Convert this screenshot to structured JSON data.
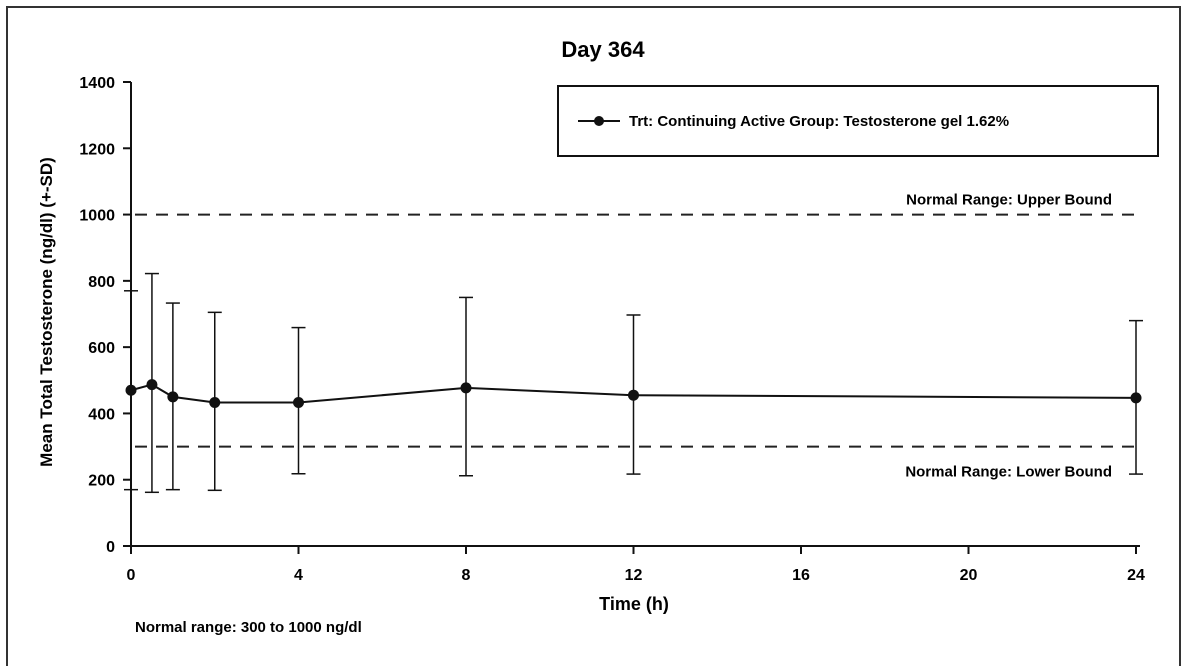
{
  "chart_data": {
    "type": "line",
    "title": "Day 364",
    "xlabel": "Time (h)",
    "ylabel": "Mean Total Testosterone (ng/dl) (+-SD)",
    "xlim": [
      0,
      24
    ],
    "ylim": [
      0,
      1400
    ],
    "x_ticks": [
      "0",
      "4",
      "8",
      "12",
      "16",
      "20",
      "24"
    ],
    "y_ticks": [
      "0",
      "200",
      "400",
      "600",
      "800",
      "1000",
      "1200",
      "1400"
    ],
    "series": [
      {
        "name": "Trt: Continuing Active Group: Testosterone gel 1.62%",
        "color": "#111111",
        "x": [
          0,
          0.5,
          1,
          2,
          4,
          8,
          12,
          24
        ],
        "y": [
          470,
          487,
          450,
          433,
          433,
          477,
          455,
          447
        ],
        "err_low": [
          170,
          162,
          170,
          168,
          218,
          212,
          217,
          217
        ],
        "err_high": [
          770,
          822,
          733,
          705,
          659,
          750,
          697,
          680
        ]
      }
    ],
    "reference_lines": [
      {
        "label": "Normal Range: Upper Bound",
        "y": 1000,
        "style": "dashed"
      },
      {
        "label": "Normal Range: Lower Bound",
        "y": 300,
        "style": "dashed"
      }
    ],
    "legend_position": "top-right",
    "grid": false,
    "footnote": "Normal range: 300 to 1000 ng/dl"
  }
}
